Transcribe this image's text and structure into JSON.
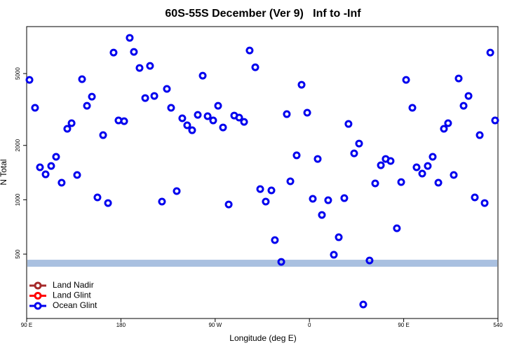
{
  "chart_data": {
    "type": "scatter",
    "title": "60S-55S December (Ver 9)   Inf to -Inf",
    "xlabel": "Longitude (deg E)",
    "ylabel": "N Total",
    "xlim": [
      90,
      540
    ],
    "xticks": [
      {
        "value": 90,
        "label": "90 E"
      },
      180,
      {
        "value": 270,
        "label": "90 W"
      },
      {
        "value": 360,
        "label": "0"
      },
      {
        "value": 450,
        "label": "90 E"
      },
      540
    ],
    "ylim": [
      220,
      9100
    ],
    "ylog": true,
    "yticks": [
      500,
      1000,
      2000,
      5000
    ],
    "legend": "lower left",
    "reference_band": {
      "value": 445,
      "color": "#a9c0e0"
    },
    "series": [
      {
        "name": "Land Nadir",
        "color": "#a52a2a",
        "x": [],
        "values": []
      },
      {
        "name": "Land Glint",
        "color": "#ff0000",
        "x": [],
        "values": []
      },
      {
        "name": "Ocean Glint",
        "color": "#0000ee",
        "x": [
          92.7,
          98.0,
          102.7,
          108.1,
          113.4,
          118.1,
          123.4,
          128.8,
          132.9,
          138.2,
          142.9,
          147.6,
          152.3,
          157.6,
          163.0,
          167.7,
          173.0,
          177.7,
          183.1,
          188.4,
          192.4,
          197.8,
          203.2,
          207.8,
          211.9,
          219.2,
          223.9,
          227.9,
          233.3,
          238.6,
          243.3,
          248.0,
          253.4,
          258.1,
          262.8,
          268.1,
          272.8,
          277.5,
          282.9,
          288.2,
          292.9,
          297.6,
          302.9,
          308.3,
          313.0,
          318.3,
          323.7,
          327.0,
          333.1,
          338.4,
          341.8,
          347.8,
          352.5,
          357.9,
          363.2,
          367.9,
          371.9,
          377.9,
          383.3,
          388.0,
          393.3,
          397.3,
          402.7,
          407.4,
          411.4,
          417.4,
          422.8,
          428.2,
          432.8,
          437.5,
          443.5,
          447.6,
          452.3,
          458.3,
          462.3,
          467.7,
          473.0,
          477.7,
          483.1,
          488.4,
          492.4,
          497.8,
          502.5,
          507.2,
          511.9,
          517.9,
          522.6,
          527.3,
          532.7,
          537.3
        ],
        "values": [
          4613,
          3230,
          1513,
          1383,
          1538,
          1729,
          1243,
          2471,
          2654,
          1371,
          4654,
          3315,
          3724,
          1031,
          2280,
          959,
          6535,
          2750,
          2724,
          7884,
          6592,
          5370,
          3659,
          5515,
          3758,
          977,
          4110,
          3230,
          1117,
          2825,
          2584,
          2427,
          2953,
          4865,
          2902,
          2750,
          3315,
          2515,
          942,
          2927,
          2851,
          2700,
          6711,
          5418,
          1146,
          977,
          1127,
          598,
          453,
          2980,
          1265,
          1762,
          4335,
          3034,
          1012,
          1683,
          824,
          994,
          496,
          620,
          1021,
          2630,
          1807,
          2048,
          263,
          461,
          1232,
          1553,
          1683,
          1640,
          695,
          1253,
          4613,
          3230,
          1513,
          1396,
          1538,
          1729,
          1243,
          2471,
          2654,
          1371,
          4698,
          3315,
          3758,
          1031,
          2280,
          959,
          6535,
          2750
        ]
      }
    ]
  }
}
